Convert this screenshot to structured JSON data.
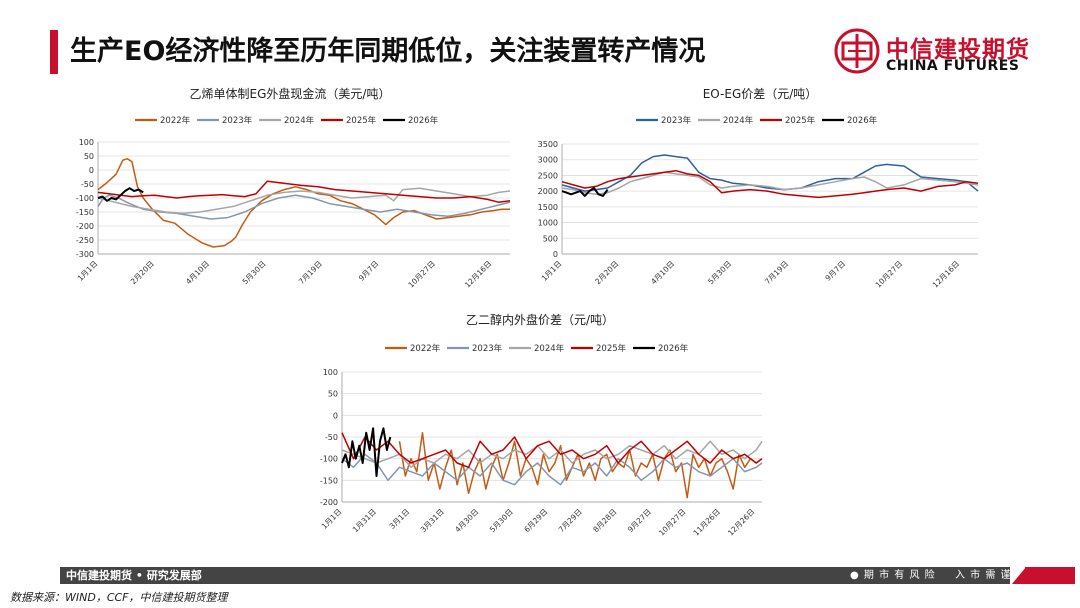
{
  "header": {
    "title": "生产EO经济性降至历年同期低位，关注装置转产情况",
    "logo_cn": "中信建投期货",
    "logo_en": "CHINA FUTURES"
  },
  "colors": {
    "accent": "#c8102e",
    "2022年": "#c55a11",
    "2023年": "#8496b0",
    "2024年": "#a6a6a6",
    "2025年": "#c00000",
    "2026年": "#000000",
    "eo_2023年": "#2e5f9e"
  },
  "footer": {
    "left": "中信建投期货 • 研究发展部",
    "right": "● 期 市 有 风 险 　 入 市 需 谨 慎",
    "source": "数据来源：WIND，CCF，中信建投期货整理"
  },
  "chart_data": [
    {
      "id": "eg_cashflow",
      "type": "line",
      "title": "乙烯单体制EG外盘现金流（美元/吨）",
      "ylim": [
        -300,
        100
      ],
      "yticks": [
        100,
        50,
        0,
        -50,
        -100,
        -150,
        -200,
        -250,
        -300
      ],
      "xticks": [
        "1月1日",
        "2月20日",
        "4月10日",
        "5月30日",
        "7月19日",
        "9月7日",
        "10月27日",
        "12月16日"
      ],
      "x_domain": [
        0,
        365
      ],
      "xtick_pos": [
        0,
        50,
        99,
        149,
        199,
        249,
        299,
        349
      ],
      "legend_position": "top",
      "series": [
        {
          "name": "2022年",
          "x": [
            0,
            8,
            16,
            22,
            26,
            30,
            35,
            40,
            48,
            58,
            68,
            80,
            92,
            102,
            112,
            118,
            122,
            128,
            135,
            145,
            155,
            165,
            175,
            185,
            195,
            205,
            215,
            225,
            235,
            245,
            255,
            262,
            270,
            280,
            290,
            300,
            310,
            320,
            330,
            340,
            350,
            358,
            365
          ],
          "y": [
            -70,
            -45,
            -15,
            35,
            40,
            30,
            -60,
            -100,
            -140,
            -180,
            -190,
            -230,
            -260,
            -275,
            -270,
            -255,
            -240,
            -195,
            -150,
            -110,
            -85,
            -70,
            -60,
            -70,
            -85,
            -90,
            -110,
            -120,
            -140,
            -160,
            -195,
            -170,
            -150,
            -145,
            -160,
            -175,
            -170,
            -165,
            -160,
            -150,
            -145,
            -140,
            -140
          ]
        },
        {
          "name": "2023年",
          "x": [
            0,
            5,
            10,
            18,
            28,
            40,
            55,
            70,
            85,
            100,
            115,
            130,
            145,
            160,
            175,
            190,
            205,
            220,
            235,
            250,
            265,
            280,
            295,
            310,
            325,
            340,
            355,
            365
          ],
          "y": [
            -130,
            -100,
            -90,
            -100,
            -120,
            -140,
            -150,
            -155,
            -165,
            -175,
            -170,
            -150,
            -120,
            -100,
            -90,
            -100,
            -120,
            -130,
            -140,
            -150,
            -140,
            -150,
            -160,
            -165,
            -155,
            -140,
            -125,
            -115
          ]
        },
        {
          "name": "2024年",
          "x": [
            0,
            10,
            20,
            30,
            45,
            60,
            75,
            90,
            105,
            120,
            135,
            150,
            165,
            180,
            195,
            210,
            225,
            240,
            255,
            262,
            270,
            285,
            300,
            315,
            330,
            345,
            355,
            365
          ],
          "y": [
            -100,
            -110,
            -120,
            -130,
            -140,
            -150,
            -155,
            -150,
            -140,
            -130,
            -110,
            -90,
            -80,
            -75,
            -80,
            -90,
            -100,
            -95,
            -90,
            -110,
            -70,
            -65,
            -75,
            -85,
            -95,
            -90,
            -80,
            -75
          ]
        },
        {
          "name": "2025年",
          "x": [
            0,
            10,
            20,
            30,
            40,
            50,
            60,
            70,
            80,
            90,
            100,
            110,
            120,
            130,
            140,
            150,
            160,
            170,
            180,
            195,
            210,
            225,
            240,
            255,
            270,
            285,
            300,
            315,
            330,
            345,
            355,
            365
          ],
          "y": [
            -80,
            -85,
            -90,
            -95,
            -92,
            -90,
            -95,
            -100,
            -95,
            -92,
            -90,
            -88,
            -92,
            -95,
            -85,
            -40,
            -45,
            -50,
            -55,
            -60,
            -70,
            -75,
            -80,
            -85,
            -90,
            -95,
            -100,
            -100,
            -95,
            -105,
            -115,
            -110
          ]
        },
        {
          "name": "2026年",
          "x": [
            0,
            4,
            8,
            12,
            16,
            20,
            24,
            28,
            32,
            36,
            40
          ],
          "y": [
            -100,
            -95,
            -110,
            -100,
            -105,
            -90,
            -75,
            -65,
            -75,
            -70,
            -80
          ]
        }
      ]
    },
    {
      "id": "eo_eg_spread",
      "type": "line",
      "title": "EO-EG价差（元/吨）",
      "ylim": [
        0,
        3500
      ],
      "yticks": [
        3500,
        3000,
        2500,
        2000,
        1500,
        1000,
        500,
        0
      ],
      "xticks": [
        "1月1日",
        "2月20日",
        "4月10日",
        "5月30日",
        "7月19日",
        "9月7日",
        "10月27日",
        "12月16日"
      ],
      "x_domain": [
        0,
        365
      ],
      "xtick_pos": [
        0,
        50,
        99,
        149,
        199,
        249,
        299,
        349
      ],
      "legend_position": "top",
      "series": [
        {
          "name": "2023年",
          "x": [
            0,
            10,
            20,
            30,
            40,
            50,
            60,
            70,
            80,
            90,
            100,
            110,
            120,
            130,
            140,
            150,
            165,
            180,
            195,
            210,
            225,
            240,
            255,
            265,
            275,
            285,
            300,
            315,
            330,
            345,
            355,
            365
          ],
          "y": [
            2200,
            2100,
            2000,
            2050,
            2100,
            2300,
            2500,
            2900,
            3100,
            3150,
            3100,
            3050,
            2600,
            2400,
            2350,
            2250,
            2200,
            2100,
            2050,
            2100,
            2300,
            2400,
            2400,
            2600,
            2800,
            2850,
            2800,
            2450,
            2400,
            2350,
            2300,
            2000
          ]
        },
        {
          "name": "2024年",
          "x": [
            0,
            10,
            20,
            30,
            40,
            50,
            60,
            70,
            80,
            90,
            100,
            110,
            120,
            130,
            140,
            150,
            165,
            180,
            195,
            210,
            225,
            240,
            255,
            265,
            275,
            285,
            300,
            315,
            330,
            345,
            355,
            365
          ],
          "y": [
            2100,
            2050,
            1950,
            1900,
            1950,
            2100,
            2300,
            2400,
            2500,
            2600,
            2550,
            2500,
            2450,
            2200,
            2100,
            2150,
            2200,
            2150,
            2050,
            2100,
            2200,
            2300,
            2400,
            2450,
            2300,
            2100,
            2200,
            2400,
            2350,
            2300,
            2250,
            2200
          ]
        },
        {
          "name": "2025年",
          "x": [
            0,
            10,
            20,
            30,
            40,
            50,
            60,
            70,
            80,
            90,
            100,
            110,
            120,
            130,
            140,
            150,
            165,
            180,
            195,
            210,
            225,
            240,
            255,
            265,
            275,
            285,
            300,
            315,
            330,
            345,
            355,
            365
          ],
          "y": [
            2300,
            2200,
            2100,
            2150,
            2300,
            2400,
            2450,
            2500,
            2550,
            2600,
            2650,
            2550,
            2500,
            2300,
            1950,
            2000,
            2050,
            2000,
            1900,
            1850,
            1800,
            1850,
            1900,
            1950,
            2000,
            2050,
            2100,
            2000,
            2150,
            2200,
            2300,
            2250
          ]
        },
        {
          "name": "2026年",
          "x": [
            0,
            4,
            8,
            12,
            16,
            20,
            24,
            28,
            32,
            36,
            40
          ],
          "y": [
            2000,
            1950,
            1900,
            1950,
            2000,
            1850,
            2000,
            2100,
            1900,
            1850,
            2050
          ]
        }
      ]
    },
    {
      "id": "meg_domestic_foreign",
      "type": "line",
      "title": "乙二醇内外盘价差（元/吨）",
      "ylim": [
        -200,
        100
      ],
      "yticks": [
        100,
        50,
        0,
        -50,
        -100,
        -150,
        -200
      ],
      "xticks": [
        "1月1日",
        "1月31日",
        "3月1日",
        "3月31日",
        "4月30日",
        "5月30日",
        "6月29日",
        "7月29日",
        "8月28日",
        "9月27日",
        "10月27日",
        "11月26日",
        "12月26日"
      ],
      "x_domain": [
        0,
        365
      ],
      "xtick_pos": [
        0,
        30,
        59,
        89,
        119,
        149,
        179,
        209,
        239,
        269,
        299,
        329,
        359
      ],
      "legend_position": "top",
      "series": [
        {
          "name": "2022年",
          "x": [
            50,
            55,
            60,
            65,
            70,
            75,
            80,
            85,
            90,
            95,
            100,
            105,
            110,
            115,
            120,
            125,
            130,
            135,
            140,
            145,
            150,
            155,
            160,
            165,
            170,
            175,
            180,
            185,
            190,
            195,
            200,
            205,
            210,
            215,
            220,
            225,
            230,
            235,
            240,
            245,
            250,
            255,
            260,
            265,
            270,
            275,
            280,
            285,
            290,
            295,
            300,
            305,
            310,
            315,
            320,
            325,
            330,
            335,
            340,
            345,
            350,
            355,
            360,
            365
          ],
          "y": [
            -60,
            -140,
            -100,
            -130,
            -40,
            -150,
            -110,
            -170,
            -120,
            -80,
            -160,
            -110,
            -180,
            -130,
            -100,
            -170,
            -120,
            -90,
            -150,
            -110,
            -60,
            -140,
            -100,
            -120,
            -160,
            -90,
            -130,
            -110,
            -70,
            -150,
            -120,
            -90,
            -140,
            -110,
            -150,
            -100,
            -90,
            -130,
            -110,
            -120,
            -80,
            -140,
            -110,
            -120,
            -90,
            -150,
            -100,
            -80,
            -130,
            -110,
            -190,
            -90,
            -120,
            -100,
            -140,
            -110,
            -100,
            -130,
            -170,
            -90,
            -120,
            -100,
            -110,
            -100
          ]
        },
        {
          "name": "2023年",
          "x": [
            0,
            10,
            20,
            30,
            40,
            50,
            60,
            70,
            80,
            90,
            100,
            110,
            120,
            130,
            140,
            150,
            160,
            170,
            180,
            190,
            200,
            210,
            220,
            230,
            240,
            250,
            260,
            270,
            280,
            290,
            300,
            310,
            320,
            330,
            340,
            350,
            360,
            365
          ],
          "y": [
            -100,
            -120,
            -90,
            -110,
            -150,
            -120,
            -130,
            -140,
            -110,
            -130,
            -150,
            -120,
            -140,
            -110,
            -150,
            -160,
            -130,
            -110,
            -140,
            -160,
            -120,
            -130,
            -110,
            -140,
            -100,
            -120,
            -150,
            -130,
            -100,
            -120,
            -110,
            -130,
            -140,
            -120,
            -100,
            -130,
            -120,
            -110
          ]
        },
        {
          "name": "2024年",
          "x": [
            0,
            10,
            20,
            30,
            40,
            50,
            60,
            70,
            80,
            90,
            100,
            110,
            120,
            130,
            140,
            150,
            160,
            170,
            180,
            190,
            200,
            210,
            220,
            230,
            240,
            250,
            260,
            270,
            280,
            290,
            300,
            310,
            320,
            330,
            340,
            350,
            360,
            365
          ],
          "y": [
            -80,
            -90,
            -100,
            -110,
            -100,
            -90,
            -120,
            -100,
            -110,
            -90,
            -100,
            -80,
            -110,
            -90,
            -100,
            -80,
            -90,
            -70,
            -100,
            -80,
            -110,
            -90,
            -80,
            -100,
            -90,
            -70,
            -80,
            -90,
            -70,
            -100,
            -80,
            -90,
            -60,
            -90,
            -80,
            -100,
            -80,
            -60
          ]
        },
        {
          "name": "2025年",
          "x": [
            0,
            10,
            20,
            30,
            40,
            50,
            60,
            70,
            80,
            90,
            100,
            110,
            120,
            130,
            140,
            150,
            160,
            170,
            180,
            190,
            200,
            210,
            220,
            230,
            240,
            250,
            260,
            270,
            280,
            290,
            300,
            310,
            320,
            330,
            340,
            350,
            360,
            365
          ],
          "y": [
            -40,
            -100,
            -50,
            -80,
            -60,
            -90,
            -110,
            -100,
            -90,
            -80,
            -110,
            -120,
            -60,
            -90,
            -80,
            -50,
            -100,
            -70,
            -60,
            -90,
            -80,
            -100,
            -90,
            -70,
            -110,
            -80,
            -60,
            -90,
            -100,
            -80,
            -60,
            -90,
            -110,
            -80,
            -100,
            -90,
            -110,
            -100
          ]
        },
        {
          "name": "2026年",
          "x": [
            0,
            3,
            6,
            9,
            12,
            15,
            18,
            21,
            24,
            27,
            30,
            33,
            36,
            39,
            42
          ],
          "y": [
            -110,
            -90,
            -120,
            -60,
            -100,
            -70,
            -110,
            -40,
            -80,
            -30,
            -140,
            -60,
            -30,
            -80,
            -50
          ]
        }
      ]
    }
  ]
}
